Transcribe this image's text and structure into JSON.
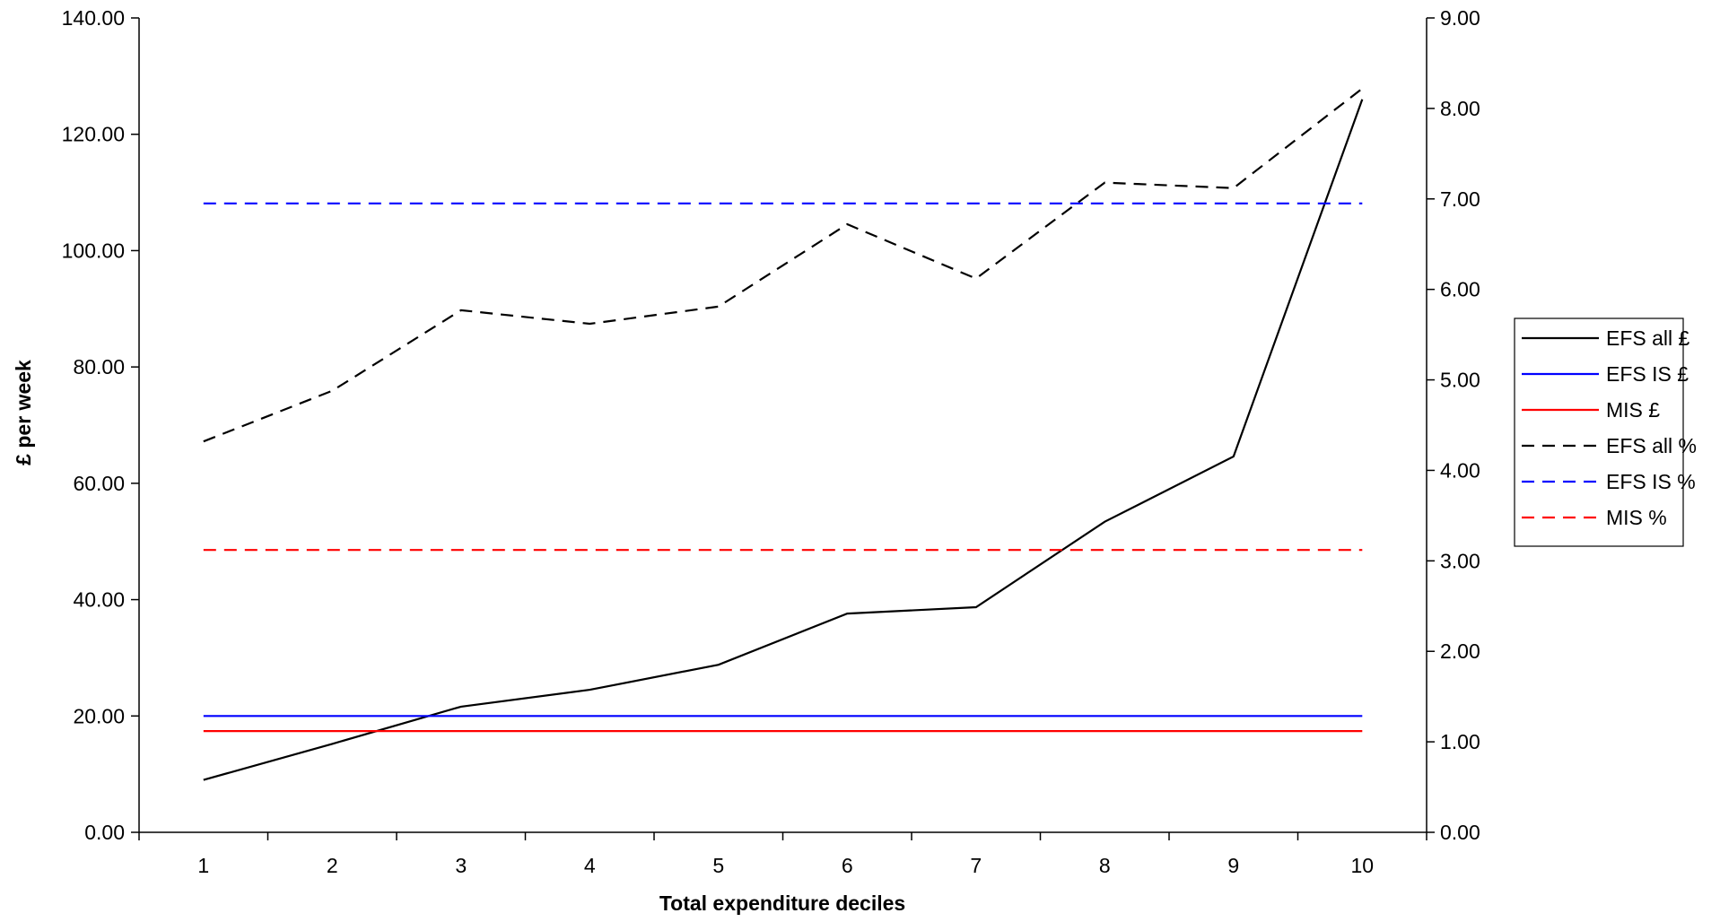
{
  "chart_data": {
    "type": "line",
    "xlabel": "Total expenditure deciles",
    "ylabel": "£ per week",
    "x": [
      1,
      2,
      3,
      4,
      5,
      6,
      7,
      8,
      9,
      10
    ],
    "y_left": {
      "min": 0,
      "max": 140,
      "ticks": [
        "0.00",
        "20.00",
        "40.00",
        "60.00",
        "80.00",
        "100.00",
        "120.00",
        "140.00"
      ]
    },
    "y_right": {
      "min": 0,
      "max": 9,
      "ticks": [
        "0.00",
        "1.00",
        "2.00",
        "3.00",
        "4.00",
        "5.00",
        "6.00",
        "7.00",
        "8.00",
        "9.00"
      ]
    },
    "x_ticks": [
      "1",
      "2",
      "3",
      "4",
      "5",
      "6",
      "7",
      "8",
      "9",
      "10"
    ],
    "grid": false,
    "legend_position": "right",
    "series": [
      {
        "name": "EFS all £",
        "axis": "left",
        "color": "#000000",
        "dashed": false,
        "values": [
          9.0,
          15.2,
          21.6,
          24.5,
          28.8,
          37.6,
          38.7,
          53.4,
          64.6,
          126.0
        ]
      },
      {
        "name": "EFS IS £",
        "axis": "left",
        "color": "#0000ff",
        "dashed": false,
        "values": [
          20.0,
          20.0,
          20.0,
          20.0,
          20.0,
          20.0,
          20.0,
          20.0,
          20.0,
          20.0
        ]
      },
      {
        "name": "MIS £",
        "axis": "left",
        "color": "#ff0000",
        "dashed": false,
        "values": [
          17.4,
          17.4,
          17.4,
          17.4,
          17.4,
          17.4,
          17.4,
          17.4,
          17.4,
          17.4
        ]
      },
      {
        "name": "EFS all %",
        "axis": "right",
        "color": "#000000",
        "dashed": true,
        "values": [
          4.32,
          4.88,
          5.77,
          5.62,
          5.81,
          6.72,
          6.12,
          7.18,
          7.12,
          8.22
        ]
      },
      {
        "name": "EFS IS %",
        "axis": "right",
        "color": "#0000ff",
        "dashed": true,
        "values": [
          6.95,
          6.95,
          6.95,
          6.95,
          6.95,
          6.95,
          6.95,
          6.95,
          6.95,
          6.95
        ]
      },
      {
        "name": "MIS %",
        "axis": "right",
        "color": "#ff0000",
        "dashed": true,
        "values": [
          3.12,
          3.12,
          3.12,
          3.12,
          3.12,
          3.12,
          3.12,
          3.12,
          3.12,
          3.12
        ]
      }
    ]
  }
}
